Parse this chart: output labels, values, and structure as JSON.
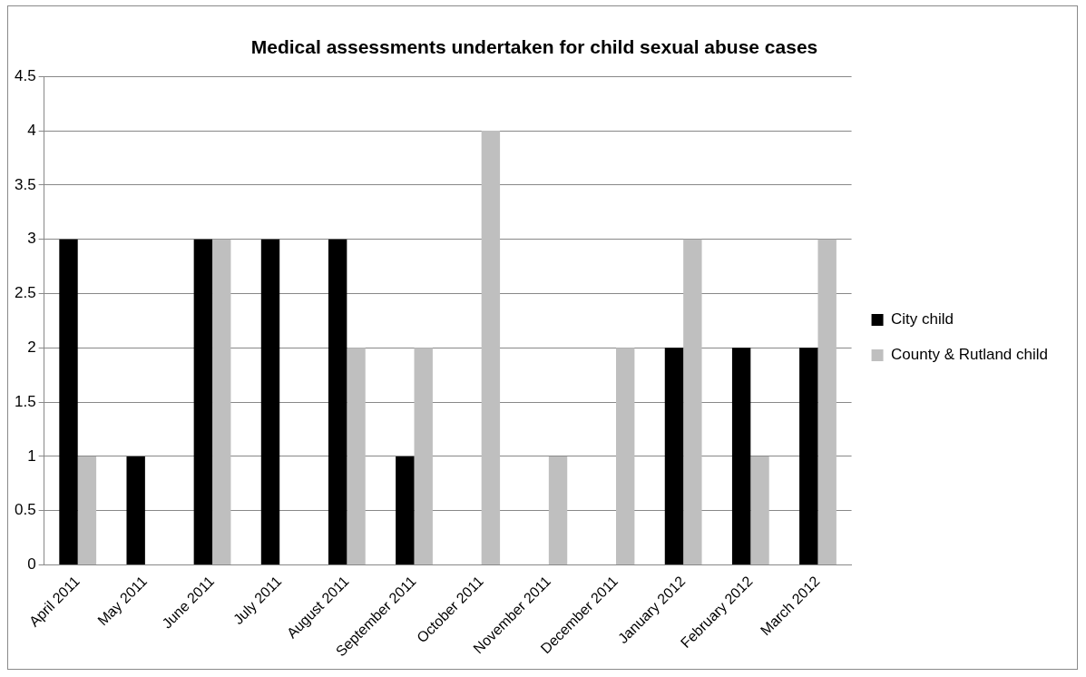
{
  "chart_data": {
    "type": "bar",
    "title": "Medical assessments undertaken for child sexual abuse cases",
    "categories": [
      "April 2011",
      "May 2011",
      "June 2011",
      "July 2011",
      "August 2011",
      "September 2011",
      "October 2011",
      "November 2011",
      "December 2011",
      "January 2012",
      "February 2012",
      "March 2012"
    ],
    "series": [
      {
        "name": "City child",
        "color": "#000000",
        "values": [
          3,
          1,
          3,
          3,
          3,
          1,
          0,
          0,
          0,
          2,
          2,
          2
        ]
      },
      {
        "name": "County & Rutland child",
        "color": "#bfbfbf",
        "values": [
          1,
          0,
          3,
          0,
          2,
          2,
          4,
          1,
          2,
          3,
          1,
          3
        ]
      }
    ],
    "ylim": [
      0,
      4.5
    ],
    "yticks": [
      0,
      0.5,
      1,
      1.5,
      2,
      2.5,
      3,
      3.5,
      4,
      4.5
    ],
    "grid": "y",
    "legend": "right"
  }
}
